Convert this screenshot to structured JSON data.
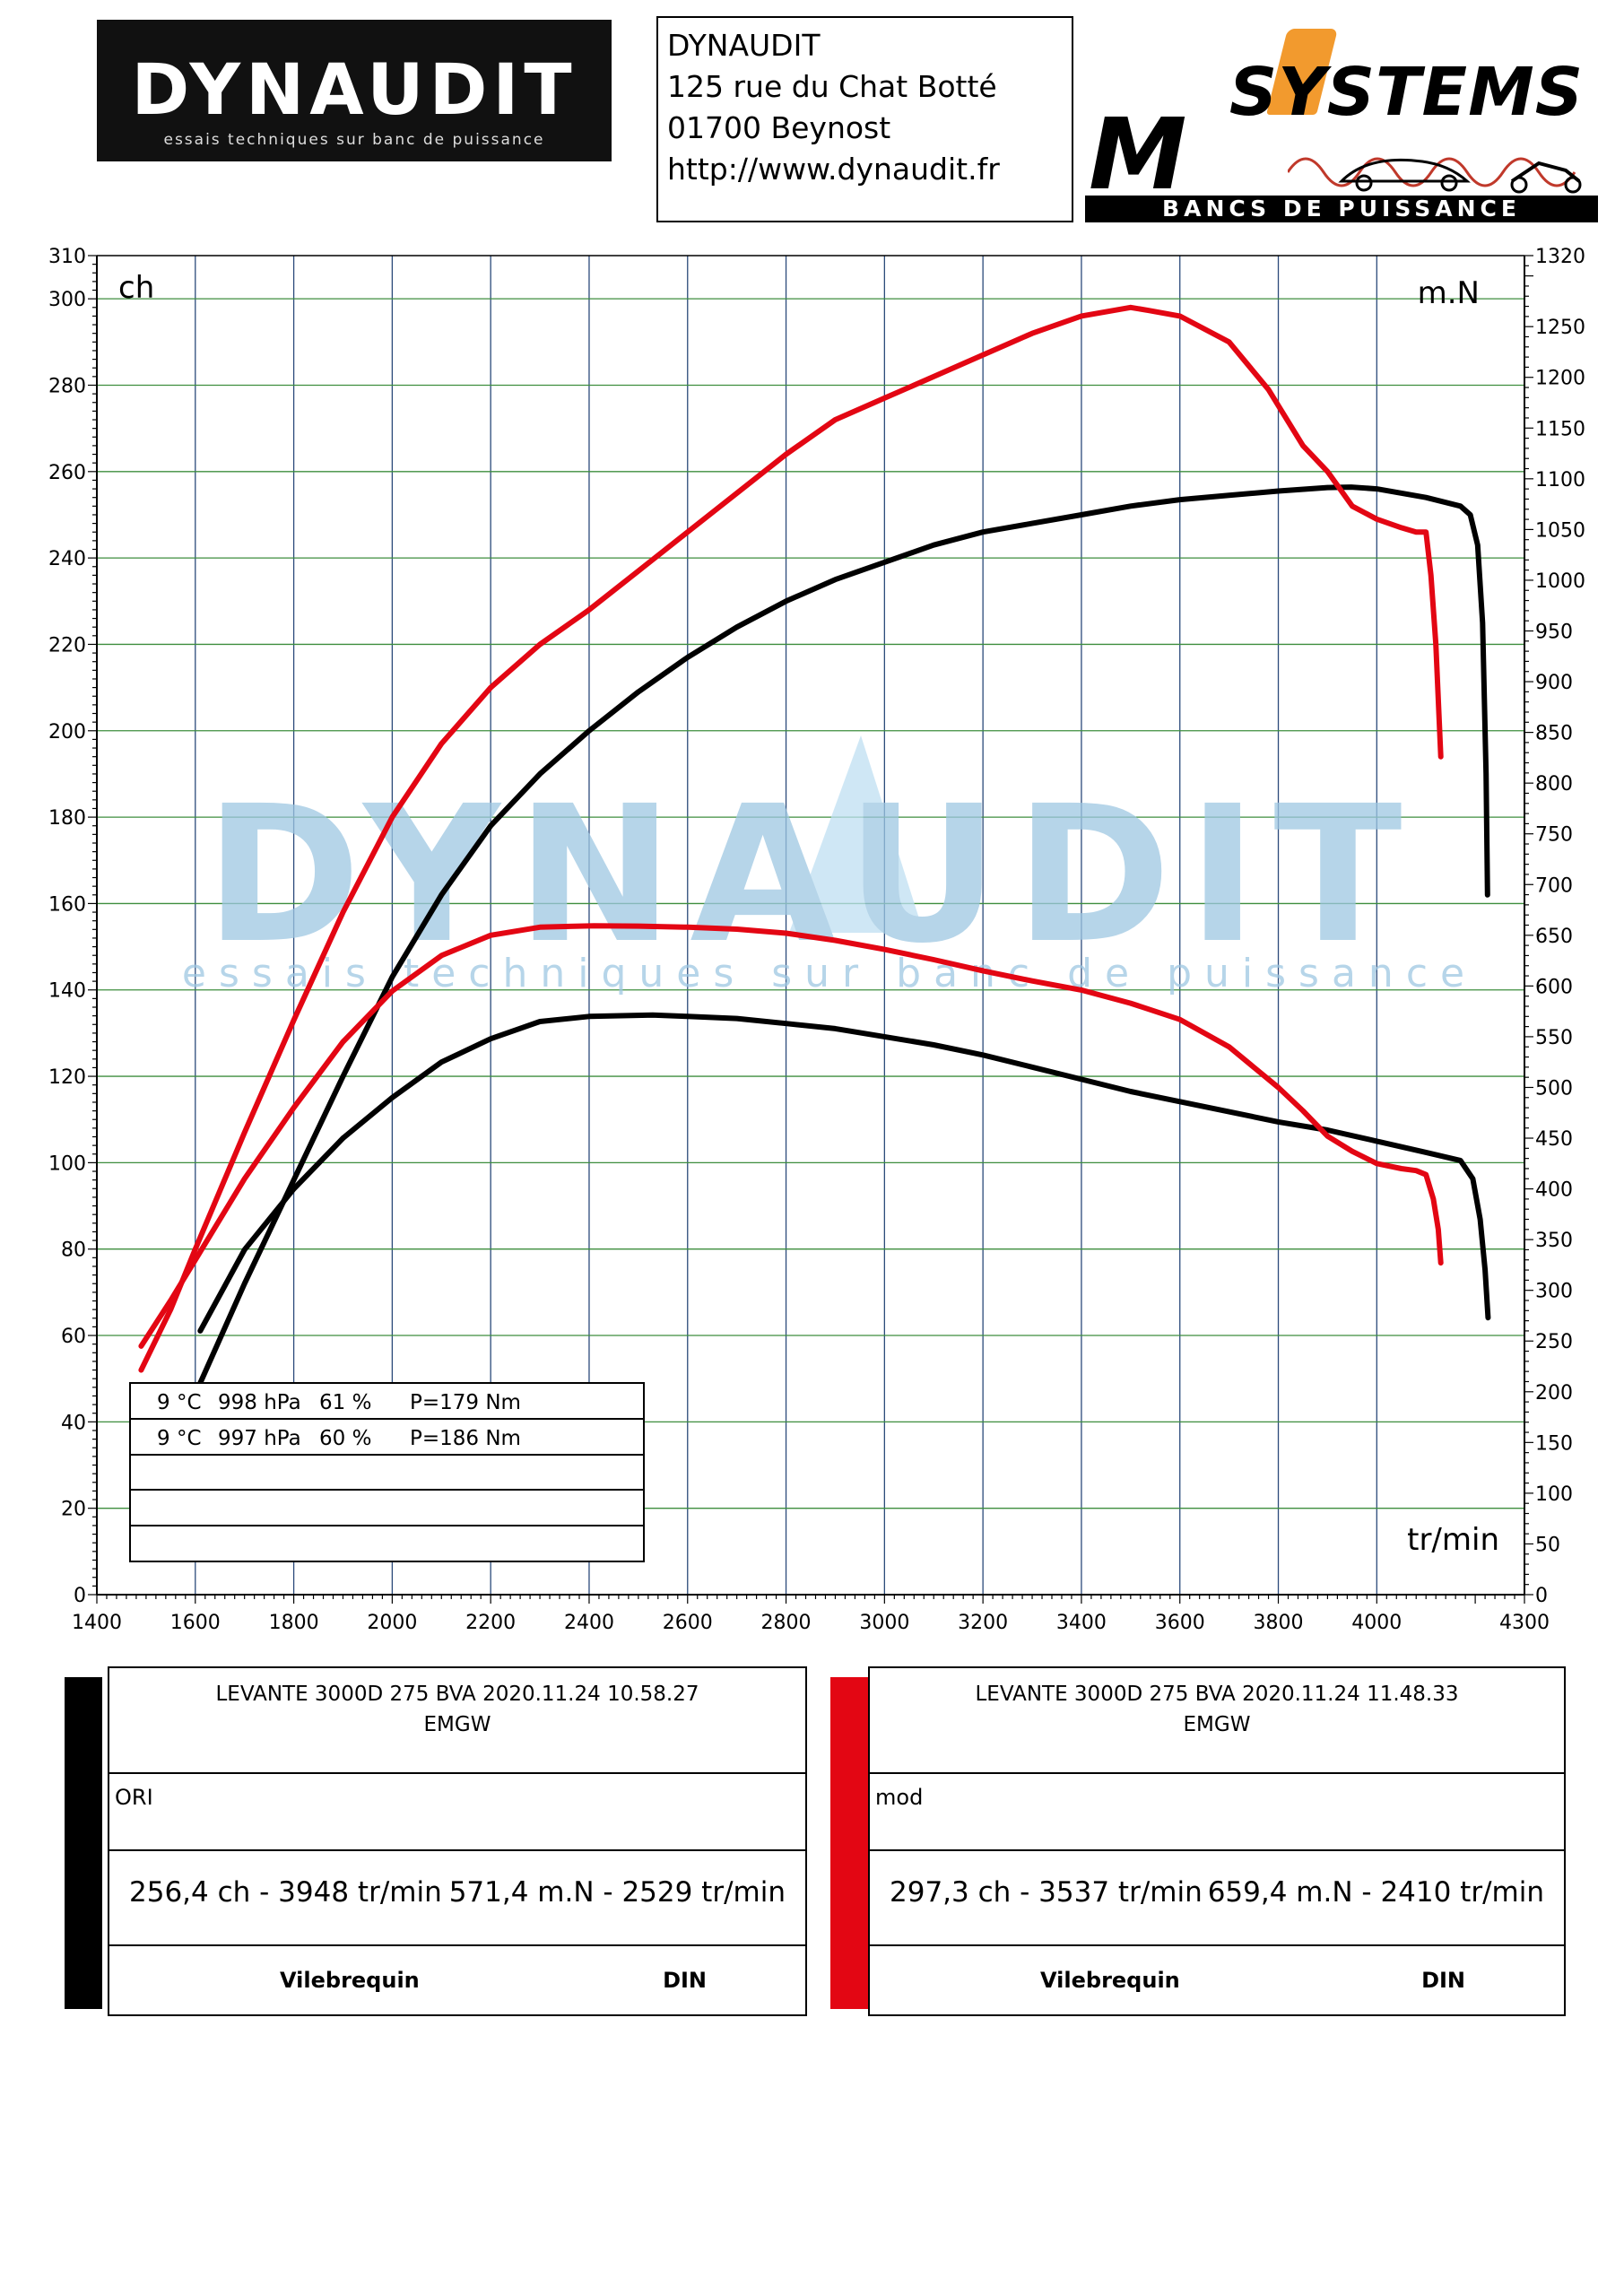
{
  "header": {
    "logo_left": {
      "brand": "DYNAUDIT",
      "tagline": "essais techniques sur banc de puissance"
    },
    "address": [
      "DYNAUDIT",
      "125 rue du Chat Botté",
      "01700 Beynost",
      "http://www.dynaudit.fr"
    ],
    "logo_right": {
      "top": "SYSTEMS",
      "letter": "M",
      "bottom": "BANCS DE PUISSANCE"
    }
  },
  "watermark": {
    "brand": "DYNAUDIT",
    "tagline": "essais techniques sur banc de puissance"
  },
  "chart_data": {
    "type": "line",
    "xlabel": "tr/min",
    "ylabel_left": "ch",
    "ylabel_right": "m.N",
    "xlim": [
      1400,
      4300
    ],
    "ylim_left": [
      0,
      310
    ],
    "ylim_right": [
      0,
      1320
    ],
    "x_ticks": [
      1400,
      1600,
      1800,
      2000,
      2200,
      2400,
      2600,
      2800,
      3000,
      3200,
      3400,
      3600,
      3800,
      4000,
      4300
    ],
    "y_left_ticks": [
      0,
      20,
      40,
      60,
      80,
      100,
      120,
      140,
      160,
      180,
      200,
      220,
      240,
      260,
      280,
      300,
      310
    ],
    "y_right_ticks": [
      0,
      50,
      100,
      150,
      200,
      250,
      300,
      350,
      400,
      450,
      500,
      550,
      600,
      650,
      700,
      750,
      800,
      850,
      900,
      950,
      1000,
      1050,
      1100,
      1150,
      1200,
      1250,
      1320
    ],
    "grid": true,
    "colors": {
      "ori": "#000000",
      "mod": "#e30613",
      "grid_v": "#2b4a7a",
      "grid_h": "#3e8e3e"
    },
    "series": [
      {
        "name": "ORI",
        "quantity": "ch",
        "axis": "left",
        "color": "#000000",
        "points": [
          [
            1610,
            49
          ],
          [
            1700,
            72
          ],
          [
            1800,
            96
          ],
          [
            1900,
            120
          ],
          [
            2000,
            143
          ],
          [
            2100,
            162
          ],
          [
            2200,
            178
          ],
          [
            2300,
            190
          ],
          [
            2400,
            200
          ],
          [
            2500,
            209
          ],
          [
            2600,
            217
          ],
          [
            2700,
            224
          ],
          [
            2800,
            230
          ],
          [
            2900,
            235
          ],
          [
            3000,
            239
          ],
          [
            3100,
            243
          ],
          [
            3200,
            246
          ],
          [
            3300,
            248
          ],
          [
            3400,
            250
          ],
          [
            3500,
            252
          ],
          [
            3600,
            253.5
          ],
          [
            3700,
            254.5
          ],
          [
            3800,
            255.5
          ],
          [
            3900,
            256.3
          ],
          [
            3948,
            256.4
          ],
          [
            4000,
            256
          ],
          [
            4100,
            254
          ],
          [
            4170,
            252
          ],
          [
            4190,
            250
          ],
          [
            4205,
            243
          ],
          [
            4215,
            225
          ],
          [
            4222,
            190
          ],
          [
            4225,
            162
          ]
        ]
      },
      {
        "name": "ORI",
        "quantity": "m.N",
        "axis": "right",
        "color": "#000000",
        "points": [
          [
            1610,
            260
          ],
          [
            1700,
            340
          ],
          [
            1800,
            400
          ],
          [
            1900,
            450
          ],
          [
            2000,
            490
          ],
          [
            2100,
            525
          ],
          [
            2200,
            548
          ],
          [
            2300,
            565
          ],
          [
            2400,
            570
          ],
          [
            2529,
            571.4
          ],
          [
            2600,
            570
          ],
          [
            2700,
            568
          ],
          [
            2800,
            563
          ],
          [
            2900,
            558
          ],
          [
            3000,
            550
          ],
          [
            3100,
            542
          ],
          [
            3200,
            532
          ],
          [
            3300,
            520
          ],
          [
            3400,
            508
          ],
          [
            3500,
            496
          ],
          [
            3600,
            486
          ],
          [
            3700,
            476
          ],
          [
            3800,
            466
          ],
          [
            3900,
            458
          ],
          [
            4000,
            447
          ],
          [
            4100,
            436
          ],
          [
            4170,
            428
          ],
          [
            4195,
            410
          ],
          [
            4210,
            370
          ],
          [
            4220,
            320
          ],
          [
            4226,
            273
          ]
        ]
      },
      {
        "name": "mod",
        "quantity": "ch",
        "axis": "left",
        "color": "#e30613",
        "points": [
          [
            1490,
            52
          ],
          [
            1550,
            66
          ],
          [
            1600,
            80
          ],
          [
            1700,
            107
          ],
          [
            1800,
            133
          ],
          [
            1900,
            158
          ],
          [
            2000,
            180
          ],
          [
            2100,
            197
          ],
          [
            2200,
            210
          ],
          [
            2300,
            220
          ],
          [
            2400,
            228
          ],
          [
            2500,
            237
          ],
          [
            2600,
            246
          ],
          [
            2700,
            255
          ],
          [
            2800,
            264
          ],
          [
            2900,
            272
          ],
          [
            3000,
            277
          ],
          [
            3100,
            282
          ],
          [
            3200,
            287
          ],
          [
            3300,
            292
          ],
          [
            3400,
            296
          ],
          [
            3500,
            298
          ],
          [
            3537,
            297.3
          ],
          [
            3600,
            296
          ],
          [
            3700,
            290
          ],
          [
            3780,
            279
          ],
          [
            3850,
            266
          ],
          [
            3900,
            260
          ],
          [
            3950,
            252
          ],
          [
            4000,
            249
          ],
          [
            4050,
            247
          ],
          [
            4080,
            246
          ],
          [
            4100,
            246
          ],
          [
            4110,
            236
          ],
          [
            4120,
            220
          ],
          [
            4130,
            194
          ]
        ]
      },
      {
        "name": "mod",
        "quantity": "m.N",
        "axis": "right",
        "color": "#e30613",
        "points": [
          [
            1490,
            245
          ],
          [
            1550,
            290
          ],
          [
            1600,
            330
          ],
          [
            1700,
            410
          ],
          [
            1800,
            480
          ],
          [
            1900,
            545
          ],
          [
            2000,
            595
          ],
          [
            2100,
            630
          ],
          [
            2200,
            650
          ],
          [
            2300,
            658
          ],
          [
            2410,
            659.4
          ],
          [
            2500,
            659
          ],
          [
            2600,
            658
          ],
          [
            2700,
            656
          ],
          [
            2800,
            652
          ],
          [
            2900,
            645
          ],
          [
            3000,
            636
          ],
          [
            3100,
            626
          ],
          [
            3200,
            615
          ],
          [
            3300,
            605
          ],
          [
            3400,
            596
          ],
          [
            3500,
            583
          ],
          [
            3600,
            567
          ],
          [
            3700,
            540
          ],
          [
            3800,
            500
          ],
          [
            3850,
            477
          ],
          [
            3900,
            452
          ],
          [
            3950,
            437
          ],
          [
            4000,
            425
          ],
          [
            4050,
            420
          ],
          [
            4080,
            418
          ],
          [
            4100,
            414
          ],
          [
            4115,
            390
          ],
          [
            4125,
            360
          ],
          [
            4130,
            327
          ]
        ]
      }
    ]
  },
  "conditions": [
    {
      "temp": "9 °C",
      "pressure": "998 hPa",
      "humidity": "61 %",
      "p": "P=179 Nm"
    },
    {
      "temp": "9 °C",
      "pressure": "997 hPa",
      "humidity": "60 %",
      "p": "P=186 Nm"
    }
  ],
  "results": [
    {
      "strip_color": "#000000",
      "title": "LEVANTE 3000D 275 BVA   2020.11.24 10.58.27",
      "subtitle": "EMGW",
      "label": "ORI",
      "peak_power": "256,4 ch - 3948 tr/min",
      "peak_torque": "571,4 m.N - 2529 tr/min",
      "foot_left": "Vilebrequin",
      "foot_right": "DIN"
    },
    {
      "strip_color": "#e30613",
      "title": "LEVANTE 3000D 275 BVA   2020.11.24 11.48.33",
      "subtitle": "EMGW",
      "label": "mod",
      "peak_power": "297,3 ch - 3537 tr/min",
      "peak_torque": "659,4 m.N - 2410 tr/min",
      "foot_left": "Vilebrequin",
      "foot_right": "DIN"
    }
  ]
}
